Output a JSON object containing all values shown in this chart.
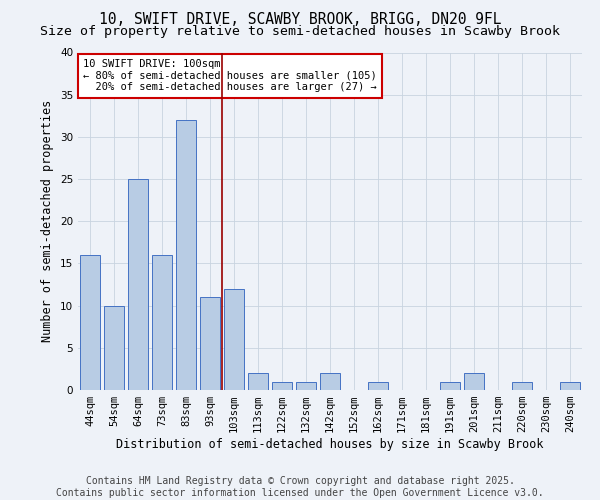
{
  "title_line1": "10, SWIFT DRIVE, SCAWBY BROOK, BRIGG, DN20 9FL",
  "title_line2": "Size of property relative to semi-detached houses in Scawby Brook",
  "xlabel": "Distribution of semi-detached houses by size in Scawby Brook",
  "ylabel": "Number of semi-detached properties",
  "categories": [
    "44sqm",
    "54sqm",
    "64sqm",
    "73sqm",
    "83sqm",
    "93sqm",
    "103sqm",
    "113sqm",
    "122sqm",
    "132sqm",
    "142sqm",
    "152sqm",
    "162sqm",
    "171sqm",
    "181sqm",
    "191sqm",
    "201sqm",
    "211sqm",
    "220sqm",
    "230sqm",
    "240sqm"
  ],
  "values": [
    16,
    10,
    25,
    16,
    32,
    11,
    12,
    2,
    1,
    1,
    2,
    0,
    1,
    0,
    0,
    1,
    2,
    0,
    1,
    0,
    1
  ],
  "bar_color": "#b8cce4",
  "bar_edge_color": "#4472c4",
  "grid_color": "#c8d4e0",
  "background_color": "#eef2f8",
  "vline_color": "#990000",
  "annotation_text": "10 SWIFT DRIVE: 100sqm\n← 80% of semi-detached houses are smaller (105)\n  20% of semi-detached houses are larger (27) →",
  "annotation_box_color": "#ffffff",
  "annotation_box_edge_color": "#cc0000",
  "ylim": [
    0,
    40
  ],
  "yticks": [
    0,
    5,
    10,
    15,
    20,
    25,
    30,
    35,
    40
  ],
  "footer_line1": "Contains HM Land Registry data © Crown copyright and database right 2025.",
  "footer_line2": "Contains public sector information licensed under the Open Government Licence v3.0.",
  "title_fontsize": 10.5,
  "subtitle_fontsize": 9.5,
  "axis_label_fontsize": 8.5,
  "tick_fontsize": 7.5,
  "annotation_fontsize": 7.5,
  "footer_fontsize": 7.0
}
